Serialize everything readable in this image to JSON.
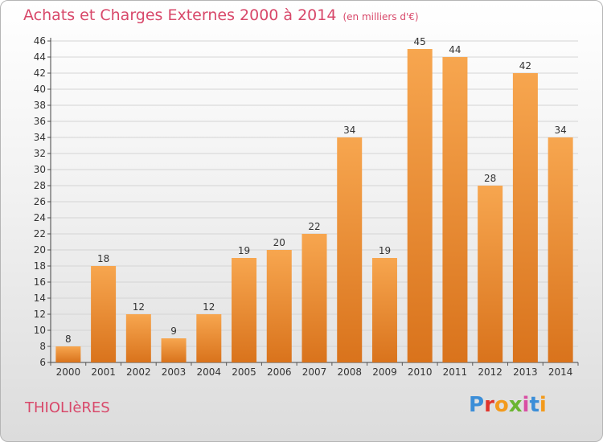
{
  "header": {
    "title": "Achats et Charges Externes 2000 à 2014",
    "subtitle": "(en milliers d'€)"
  },
  "footer": {
    "commune": "THIOLIèRES",
    "logo_text": "Proxiti",
    "logo_colors": [
      "#3b8ed8",
      "#e0342c",
      "#f39a1c",
      "#6bb531",
      "#d94fa4",
      "#3b8ed8",
      "#f39a1c"
    ]
  },
  "chart_data": {
    "type": "bar",
    "categories": [
      "2000",
      "2001",
      "2002",
      "2003",
      "2004",
      "2005",
      "2006",
      "2007",
      "2008",
      "2009",
      "2010",
      "2011",
      "2012",
      "2013",
      "2014"
    ],
    "values": [
      8,
      18,
      12,
      9,
      12,
      19,
      20,
      22,
      34,
      19,
      45,
      44,
      28,
      42,
      34
    ],
    "ylim": [
      6,
      46
    ],
    "yticks": [
      6,
      8,
      10,
      12,
      14,
      16,
      18,
      20,
      22,
      24,
      26,
      28,
      30,
      32,
      34,
      36,
      38,
      40,
      42,
      44,
      46
    ],
    "grid": true,
    "bar_color_top": "#f7a64f",
    "bar_color_bottom": "#d9731c",
    "title": "Achats et Charges Externes 2000 à 2014",
    "xlabel": "",
    "ylabel": ""
  }
}
